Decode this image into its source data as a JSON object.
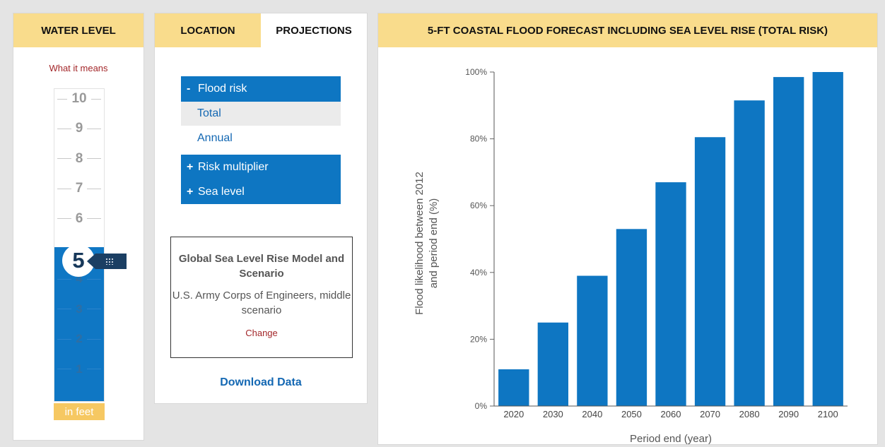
{
  "water_level": {
    "title": "WATER LEVEL",
    "what_link": "What it means",
    "ticks": [
      "10",
      "9",
      "8",
      "7",
      "6",
      "4",
      "3",
      "2",
      "1"
    ],
    "current": "5",
    "unit": "in feet",
    "fill_level_ft": 5,
    "max_ft": 10
  },
  "tabs": {
    "location": "LOCATION",
    "projections": "PROJECTIONS"
  },
  "menu": {
    "flood_risk": {
      "symbol": "-",
      "label": "Flood risk"
    },
    "total": "Total",
    "annual": "Annual",
    "risk_multiplier": {
      "symbol": "+",
      "label": "Risk multiplier"
    },
    "sea_level": {
      "symbol": "+",
      "label": "Sea level"
    }
  },
  "model": {
    "title": "Global Sea Level Rise Model and Scenario",
    "description": "U.S. Army Corps of Engineers, middle scenario",
    "change": "Change"
  },
  "download": "Download Data",
  "chart_panel": {
    "title": "5-FT COASTAL FLOOD FORECAST INCLUDING SEA LEVEL RISE (TOTAL RISK)"
  },
  "colors": {
    "accent_blue": "#0e76c2",
    "header_yellow": "#f9dc8c",
    "link_red": "#a3272a",
    "navy": "#1b3f63"
  },
  "chart_data": {
    "type": "bar",
    "categories": [
      "2020",
      "2030",
      "2040",
      "2050",
      "2060",
      "2070",
      "2080",
      "2090",
      "2100"
    ],
    "values": [
      11,
      25,
      39,
      53,
      67,
      80.5,
      91.5,
      98.5,
      100
    ],
    "ylim": [
      0,
      100
    ],
    "yticks": [
      "0%",
      "20%",
      "40%",
      "60%",
      "80%",
      "100%"
    ],
    "ytick_values": [
      0,
      20,
      40,
      60,
      80,
      100
    ],
    "ylabel_line1": "Flood likelihood between 2012",
    "ylabel_line2": "and period end (%)",
    "xlabel": "Period end (year)",
    "bar_color": "#0e76c2"
  }
}
